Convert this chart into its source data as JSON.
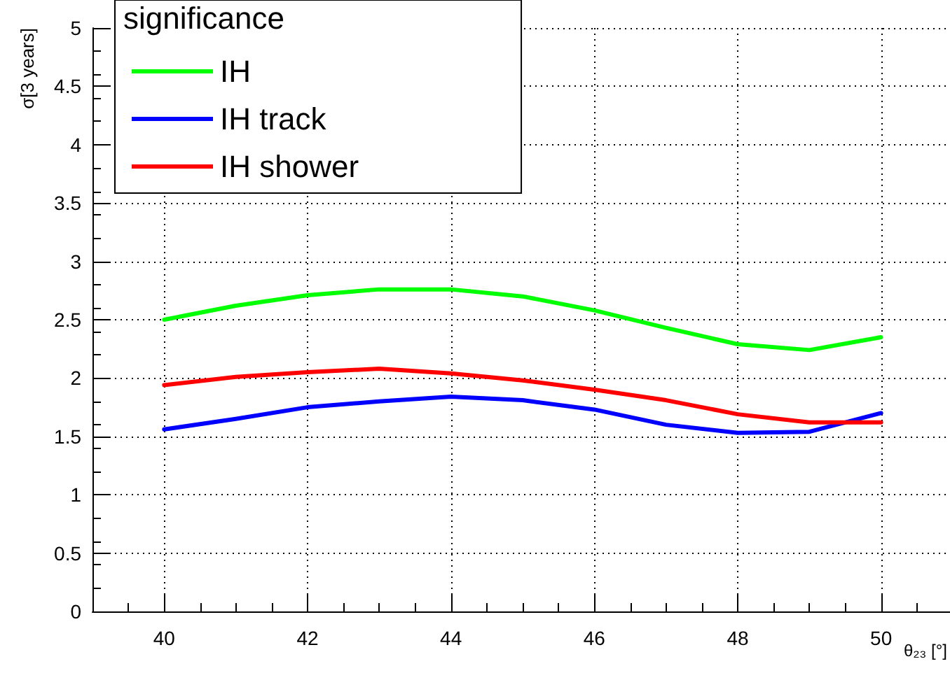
{
  "chart_data": {
    "type": "line",
    "xlabel": "θ₂₃ [°]",
    "ylabel": "σ[3 years]",
    "legend_title": "significance",
    "x": [
      40,
      41,
      42,
      43,
      44,
      45,
      46,
      47,
      48,
      49,
      50
    ],
    "series": [
      {
        "name": "IH",
        "color": "#00ff00",
        "values": [
          2.5,
          2.62,
          2.71,
          2.76,
          2.76,
          2.7,
          2.58,
          2.43,
          2.29,
          2.24,
          2.35
        ]
      },
      {
        "name": "IH track",
        "color": "#0000ff",
        "values": [
          1.56,
          1.65,
          1.75,
          1.8,
          1.84,
          1.81,
          1.73,
          1.6,
          1.53,
          1.54,
          1.7
        ]
      },
      {
        "name": "IH shower",
        "color": "#ff0000",
        "values": [
          1.94,
          2.01,
          2.05,
          2.08,
          2.04,
          1.98,
          1.9,
          1.81,
          1.69,
          1.62,
          1.62
        ]
      }
    ],
    "xlim": [
      39,
      51
    ],
    "xticks": [
      40,
      42,
      44,
      46,
      48,
      50
    ],
    "ylim": [
      0,
      5
    ],
    "yticks": [
      0,
      0.5,
      1,
      1.5,
      2,
      2.5,
      3,
      3.5,
      4,
      4.5,
      5
    ],
    "grid": true,
    "legend": "top left",
    "marker": "none",
    "line_style": "solid"
  }
}
